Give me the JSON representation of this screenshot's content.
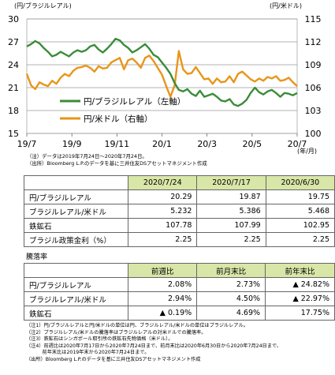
{
  "chart_data": {
    "type": "line",
    "x_ticks": [
      "19/7",
      "19/9",
      "19/11",
      "20/1",
      "20/3",
      "20/5",
      "20/7"
    ],
    "x_unit": "(年/月)",
    "left_axis": {
      "label": "(円/ブラジルレアル)",
      "ticks": [
        15,
        18,
        21,
        24,
        27,
        30
      ],
      "lim": [
        15,
        30
      ]
    },
    "right_axis": {
      "label": "(円/米ドル)",
      "ticks": [
        100,
        103,
        106,
        109,
        112,
        115
      ],
      "lim": [
        100,
        115
      ]
    },
    "grid": true,
    "legend_position": "center-left",
    "series": [
      {
        "name": "円/ブラジルレアル（左軸）",
        "axis": "left",
        "color": "#3a8c3a",
        "values": [
          26.4,
          26.7,
          27.1,
          26.8,
          26.2,
          25.7,
          25.1,
          25.3,
          25.7,
          25.4,
          25.1,
          25.6,
          25.9,
          25.7,
          25.9,
          26.4,
          26.6,
          26.0,
          25.6,
          26.1,
          26.7,
          27.4,
          27.2,
          26.6,
          26.2,
          25.6,
          25.9,
          26.3,
          26.7,
          26.1,
          25.3,
          25.0,
          24.3,
          23.6,
          22.8,
          21.6,
          20.7,
          20.5,
          20.8,
          20.2,
          19.9,
          20.6,
          19.8,
          20.0,
          20.2,
          19.8,
          19.3,
          19.2,
          19.5,
          18.8,
          18.6,
          18.9,
          19.4,
          20.3,
          21.0,
          20.4,
          20.1,
          20.5,
          20.7,
          20.3,
          19.8,
          20.3,
          20.2,
          20.0,
          20.3
        ]
      },
      {
        "name": "円/米ドル（右軸）",
        "axis": "right",
        "color": "#e8951a",
        "values": [
          107.8,
          106.3,
          105.8,
          106.7,
          106.4,
          106.2,
          106.9,
          106.5,
          107.3,
          107.8,
          107.5,
          108.2,
          108.6,
          108.7,
          108.9,
          108.6,
          108.1,
          108.8,
          108.5,
          108.6,
          109.3,
          109.6,
          109.9,
          108.4,
          109.6,
          109.8,
          109.3,
          108.6,
          109.9,
          110.2,
          109.5,
          108.6,
          107.7,
          106.2,
          104.8,
          106.3,
          110.8,
          108.4,
          107.8,
          107.9,
          108.7,
          107.9,
          107.1,
          107.2,
          106.5,
          107.2,
          106.7,
          106.8,
          107.5,
          106.7,
          107.8,
          108.1,
          107.6,
          107.1,
          106.8,
          107.2,
          106.9,
          107.4,
          107.2,
          107.5,
          106.9,
          107.0,
          107.3,
          106.7,
          106.2
        ]
      }
    ]
  },
  "note1": "（注）データは2019年7月24日～2020年7月24日。",
  "source1": "（出所）Bloomberg L.P.のデータを基に三井住友DSアセットマネジメント作成",
  "table1": {
    "headers": [
      "2020/7/24",
      "2020/7/17",
      "2020/6/30"
    ],
    "rows": [
      {
        "label": "円/ブラジルレアル",
        "values": [
          "20.29",
          "19.87",
          "19.75"
        ]
      },
      {
        "label": "ブラジルレアル/米ドル",
        "values": [
          "5.232",
          "5.386",
          "5.468"
        ]
      },
      {
        "label": "鉄鉱石",
        "values": [
          "107.78",
          "107.99",
          "102.95"
        ]
      },
      {
        "label": "ブラジル政策金利（%）",
        "values": [
          "2.25",
          "2.25",
          "2.25"
        ]
      }
    ]
  },
  "section_label": "騰落率",
  "table2": {
    "headers": [
      "前週比",
      "前月末比",
      "前年末比"
    ],
    "rows": [
      {
        "label": "円/ブラジルレアル",
        "values": [
          "2.08%",
          "2.73%",
          "▲ 24.82%"
        ]
      },
      {
        "label": "ブラジルレアル/米ドル",
        "values": [
          "2.94%",
          "4.50%",
          "▲ 22.97%"
        ]
      },
      {
        "label": "鉄鉱石",
        "values": [
          "▲ 0.19%",
          "4.69%",
          "17.75%"
        ]
      }
    ]
  },
  "footnotes": [
    "（注1）円/ブラジルレアルと円/米ドルの単位は円、ブラジルレアル/米ドルの単位はブラジルレアル。",
    "（注2）ブラジルレアル/米ドルの騰落率はブラジルレアルの対米ドルでの騰落率。",
    "（注3）鉄鉱石はシンガポール取引所の鉄鉱石先物価格（米ドル）。",
    "（注4）前週比は2020年7月17日から2020年7月24日まで、前月末比は2020年6月30日から2020年7月24日まで、",
    "　　　 前年末比は2019年末から2020年7月24日まで。",
    "（出所）Bloomberg L.P.のデータを基に三井住友DSアセットマネジメント作成"
  ]
}
